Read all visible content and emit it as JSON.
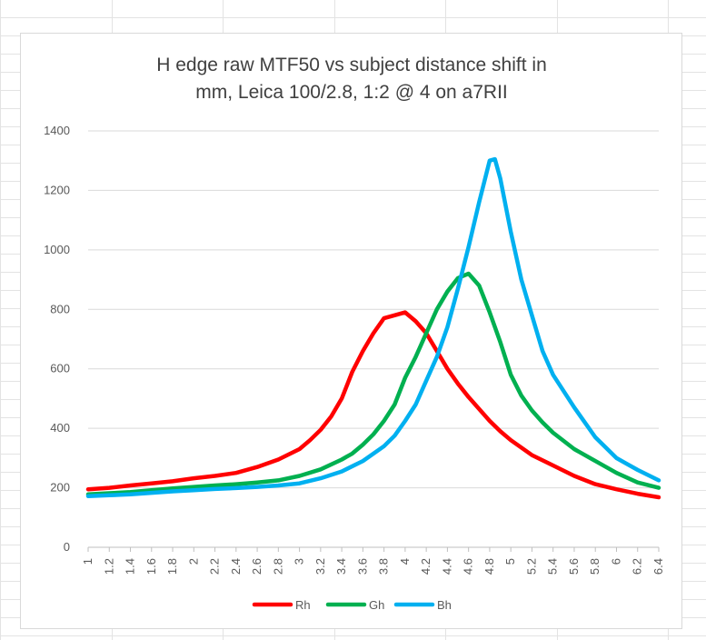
{
  "chart_data": {
    "type": "line",
    "title_lines": [
      "H edge raw MTF50 vs subject distance shift in",
      "mm, Leica 100/2.8, 1:2 @ 4 on a7RII"
    ],
    "xlabel": "",
    "ylabel": "",
    "xlim": [
      1,
      6.4
    ],
    "ylim": [
      0,
      1400
    ],
    "x_ticks": [
      "1",
      "1.2",
      "1.4",
      "1.6",
      "1.8",
      "2",
      "2.2",
      "2.4",
      "2.6",
      "2.8",
      "3",
      "3.2",
      "3.4",
      "3.6",
      "3.8",
      "4",
      "4.2",
      "4.4",
      "4.6",
      "4.8",
      "5",
      "5.2",
      "5.4",
      "5.6",
      "5.8",
      "6",
      "6.2",
      "6.4"
    ],
    "y_ticks": [
      "0",
      "200",
      "400",
      "600",
      "800",
      "1000",
      "1200",
      "1400"
    ],
    "grid": "horizontal",
    "legend_position": "bottom",
    "series": [
      {
        "name": "Rh",
        "color": "#ff0000",
        "points": [
          [
            1.0,
            195
          ],
          [
            1.2,
            200
          ],
          [
            1.4,
            208
          ],
          [
            1.6,
            215
          ],
          [
            1.8,
            222
          ],
          [
            2.0,
            232
          ],
          [
            2.2,
            240
          ],
          [
            2.4,
            250
          ],
          [
            2.6,
            270
          ],
          [
            2.8,
            295
          ],
          [
            3.0,
            330
          ],
          [
            3.1,
            360
          ],
          [
            3.2,
            395
          ],
          [
            3.3,
            440
          ],
          [
            3.4,
            500
          ],
          [
            3.5,
            590
          ],
          [
            3.6,
            660
          ],
          [
            3.7,
            720
          ],
          [
            3.8,
            770
          ],
          [
            3.9,
            780
          ],
          [
            4.0,
            790
          ],
          [
            4.1,
            760
          ],
          [
            4.2,
            720
          ],
          [
            4.3,
            660
          ],
          [
            4.4,
            600
          ],
          [
            4.5,
            550
          ],
          [
            4.6,
            505
          ],
          [
            4.7,
            465
          ],
          [
            4.8,
            425
          ],
          [
            4.9,
            390
          ],
          [
            5.0,
            360
          ],
          [
            5.2,
            310
          ],
          [
            5.4,
            275
          ],
          [
            5.6,
            240
          ],
          [
            5.8,
            212
          ],
          [
            6.0,
            195
          ],
          [
            6.2,
            180
          ],
          [
            6.4,
            168
          ]
        ]
      },
      {
        "name": "Gh",
        "color": "#00b050",
        "points": [
          [
            1.0,
            178
          ],
          [
            1.2,
            182
          ],
          [
            1.4,
            186
          ],
          [
            1.6,
            192
          ],
          [
            1.8,
            198
          ],
          [
            2.0,
            203
          ],
          [
            2.2,
            208
          ],
          [
            2.4,
            212
          ],
          [
            2.6,
            218
          ],
          [
            2.8,
            225
          ],
          [
            3.0,
            240
          ],
          [
            3.2,
            262
          ],
          [
            3.4,
            295
          ],
          [
            3.5,
            315
          ],
          [
            3.6,
            345
          ],
          [
            3.7,
            380
          ],
          [
            3.8,
            425
          ],
          [
            3.9,
            480
          ],
          [
            4.0,
            570
          ],
          [
            4.1,
            640
          ],
          [
            4.2,
            720
          ],
          [
            4.3,
            800
          ],
          [
            4.4,
            860
          ],
          [
            4.5,
            905
          ],
          [
            4.6,
            920
          ],
          [
            4.7,
            880
          ],
          [
            4.8,
            790
          ],
          [
            4.9,
            690
          ],
          [
            5.0,
            580
          ],
          [
            5.1,
            510
          ],
          [
            5.2,
            460
          ],
          [
            5.3,
            420
          ],
          [
            5.4,
            385
          ],
          [
            5.6,
            330
          ],
          [
            5.8,
            290
          ],
          [
            6.0,
            250
          ],
          [
            6.2,
            218
          ],
          [
            6.4,
            200
          ]
        ]
      },
      {
        "name": "Bh",
        "color": "#00b0f0",
        "points": [
          [
            1.0,
            172
          ],
          [
            1.2,
            175
          ],
          [
            1.4,
            178
          ],
          [
            1.6,
            183
          ],
          [
            1.8,
            188
          ],
          [
            2.0,
            192
          ],
          [
            2.2,
            196
          ],
          [
            2.4,
            199
          ],
          [
            2.6,
            203
          ],
          [
            2.8,
            208
          ],
          [
            3.0,
            215
          ],
          [
            3.2,
            232
          ],
          [
            3.4,
            255
          ],
          [
            3.6,
            290
          ],
          [
            3.8,
            340
          ],
          [
            3.9,
            375
          ],
          [
            4.0,
            425
          ],
          [
            4.1,
            480
          ],
          [
            4.2,
            560
          ],
          [
            4.3,
            640
          ],
          [
            4.4,
            740
          ],
          [
            4.5,
            870
          ],
          [
            4.6,
            1010
          ],
          [
            4.7,
            1160
          ],
          [
            4.8,
            1300
          ],
          [
            4.85,
            1305
          ],
          [
            4.9,
            1240
          ],
          [
            5.0,
            1060
          ],
          [
            5.1,
            900
          ],
          [
            5.2,
            780
          ],
          [
            5.3,
            660
          ],
          [
            5.4,
            580
          ],
          [
            5.6,
            470
          ],
          [
            5.8,
            370
          ],
          [
            6.0,
            300
          ],
          [
            6.2,
            260
          ],
          [
            6.4,
            225
          ]
        ]
      }
    ]
  }
}
